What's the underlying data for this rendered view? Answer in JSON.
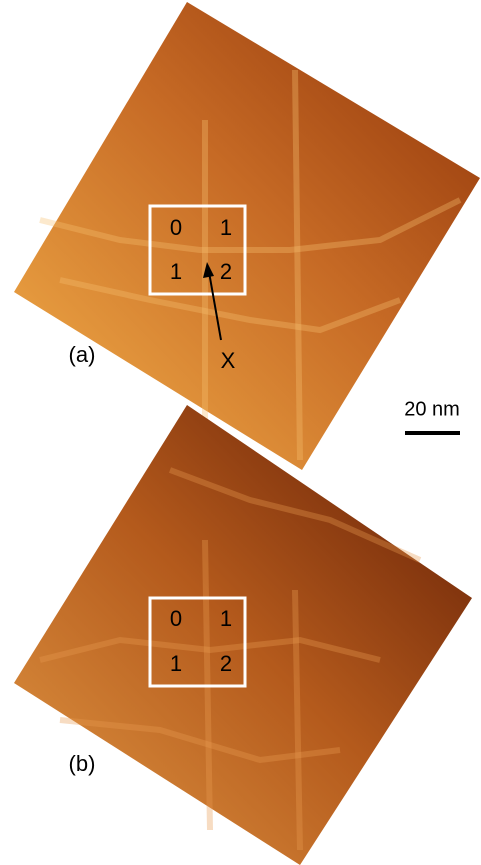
{
  "panels": [
    {
      "label": "(a)",
      "regions": [
        "0",
        "1",
        "1",
        "2"
      ],
      "annotation": "X"
    },
    {
      "label": "(b)",
      "regions": [
        "0",
        "1",
        "1",
        "2"
      ]
    }
  ],
  "scale_bar": "20 nm"
}
